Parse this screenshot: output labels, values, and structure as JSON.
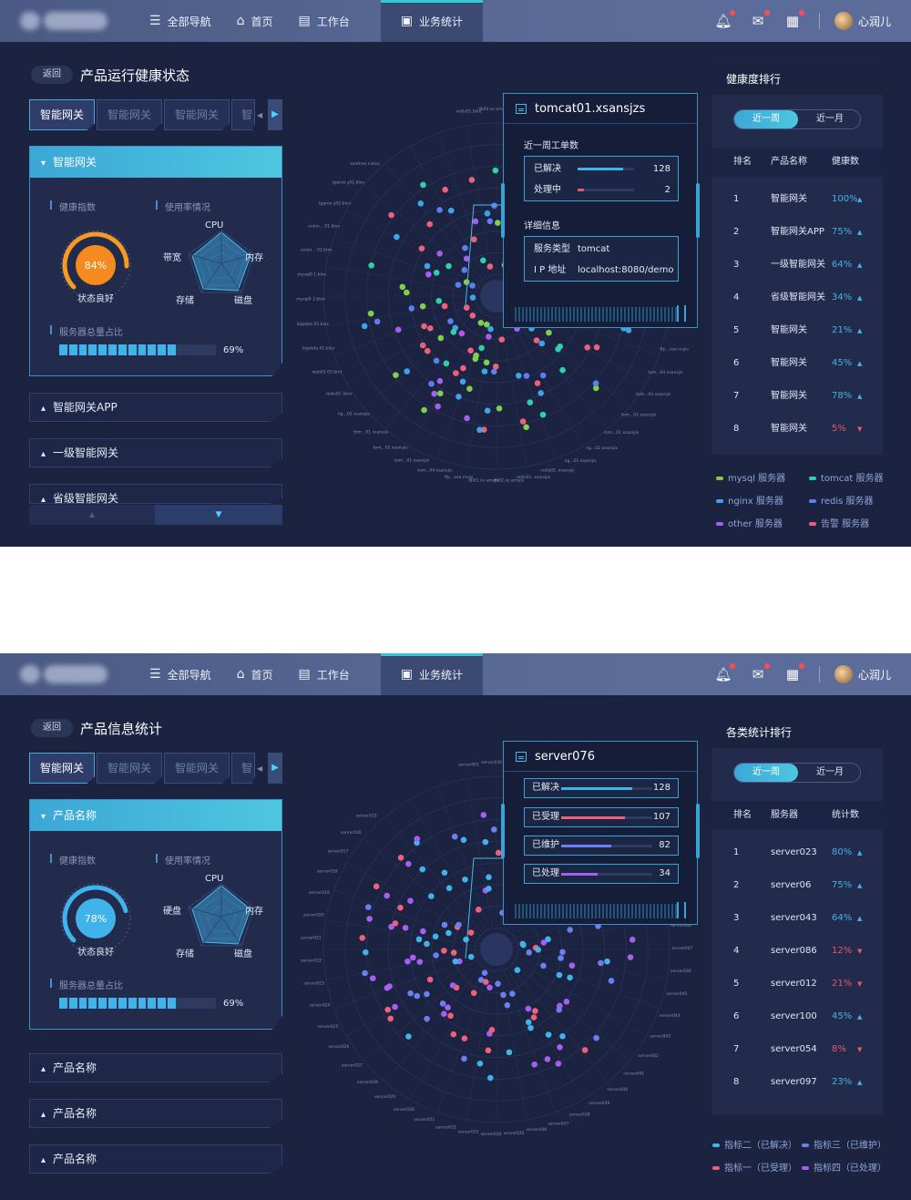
{
  "topbar": {
    "nav": [
      {
        "label": "全部导航",
        "icon": "menu-icon"
      },
      {
        "label": "首页",
        "icon": "home-icon"
      },
      {
        "label": "工作台",
        "icon": "desk-icon"
      },
      {
        "label": "业务统计",
        "icon": "chart-icon",
        "active": true
      }
    ],
    "user": "心润儿"
  },
  "screen1": {
    "back": "返回",
    "title": "产品运行健康状态",
    "tabs": [
      "智能网关",
      "智能网关",
      "智能网关",
      "智"
    ],
    "panel": {
      "title": "智能网关",
      "health_label": "健康指数",
      "usage_label": "使用率情况",
      "gauge_value": "84%",
      "gauge_fraction": 0.84,
      "gauge_caption": "状态良好",
      "radar_labels": [
        "CPU",
        "内存",
        "磁盘",
        "存储",
        "带宽"
      ],
      "server_label": "服务器总量占比",
      "server_pct": "69%",
      "server_fraction": 0.69
    },
    "folds": [
      "智能网关APP",
      "一级智能网关",
      "省级智能网关"
    ],
    "popup": {
      "title": "tomcat01.xsansjzs",
      "week_label": "近一周工单数",
      "rows": [
        {
          "label": "已解决",
          "value": "128",
          "fraction": 0.8,
          "color": "#3fb3ea"
        },
        {
          "label": "处理中",
          "value": "2",
          "fraction": 0.12,
          "color": "#e0566a"
        }
      ],
      "detail_label": "详细信息",
      "details": [
        {
          "label": "服务类型",
          "value": "tomcat"
        },
        {
          "label": "I P 地址",
          "value": "localhost:8080/demo"
        }
      ]
    },
    "polar_labels": [
      "redis01.blxx",
      "db02.xs amsjis",
      "db01.xs amsjis",
      "ftp...xsa rnsjis",
      "tom...04 xsansjis",
      "tom...01 xsansjis",
      "tom...02 xsansjis",
      "tom...01 xsansjis",
      "tom...02 xsansjis",
      "ng...01 xsansjis",
      "ng...02 xsansjis",
      "redis02 .xsansjis",
      "redis01 .xsansjis",
      "db02.xs amsjis",
      "db01.xs amsjis",
      "ftp...xsa rnsjis",
      "tom...04 xsansjis",
      "tom...03 xsansjis",
      "tom...02 xsansjis",
      "tom...01 xsansjis",
      "ng...02 xsansjis",
      "ng...01 xsansjis",
      "redis02 .xsansjis",
      "redis01 .xsansjis",
      "db02.xs amsjis",
      "db01.xs amsjis",
      "ftp...xsa rnsjis",
      "tom...04 xsansjis",
      "tom...01 xsansjis",
      "tom...02 xsansjis",
      "tom...01 xsansjis",
      "ng...02 xsansjis",
      "redis01 .blxx",
      "web01 03.blxx",
      "bigdata 01.blxx",
      "bigdata 02.blxx",
      "mysql0 2.blxx",
      "mysql0 1.blxx",
      "union... 02.blxx",
      "union... 01.blxx",
      "tpprox y02.blxx",
      "tpprox y01.blxx",
      "sentinel s.blxx"
    ],
    "rank": {
      "title": "健康度排行",
      "toggle": [
        "近一周",
        "近一月"
      ],
      "cols": [
        "排名",
        "产品名称",
        "健康数"
      ],
      "rows": [
        {
          "rank": "1",
          "name": "智能网关",
          "pct": "100%",
          "up": true
        },
        {
          "rank": "2",
          "name": "智能网关APP",
          "pct": "75%",
          "up": true
        },
        {
          "rank": "3",
          "name": "一级智能网关",
          "pct": "64%",
          "up": true
        },
        {
          "rank": "4",
          "name": "省级智能网关",
          "pct": "34%",
          "up": true
        },
        {
          "rank": "5",
          "name": "智能网关",
          "pct": "21%",
          "up": true
        },
        {
          "rank": "6",
          "name": "智能网关",
          "pct": "45%",
          "up": true
        },
        {
          "rank": "7",
          "name": "智能网关",
          "pct": "78%",
          "up": true
        },
        {
          "rank": "8",
          "name": "智能网关",
          "pct": "5%",
          "up": false
        }
      ]
    },
    "legend": [
      {
        "label": "mysql 服务器",
        "color": "#7fcf4b"
      },
      {
        "label": "tomcat 服务器",
        "color": "#2fd0a8"
      },
      {
        "label": "nginx 服务器",
        "color": "#3fa3ea"
      },
      {
        "label": "redis 服务器",
        "color": "#5a7ff0"
      },
      {
        "label": "other 服务器",
        "color": "#a65ff0"
      },
      {
        "label": "告警 服务器",
        "color": "#f0607a"
      }
    ]
  },
  "screen2": {
    "back": "返回",
    "title": "产品信息统计",
    "tabs": [
      "智能网关",
      "智能网关",
      "智能网关",
      "智"
    ],
    "panel": {
      "title": "产品名称",
      "health_label": "健康指数",
      "usage_label": "使用率情况",
      "gauge_value": "78%",
      "gauge_fraction": 0.78,
      "gauge_caption": "状态良好",
      "radar_labels": [
        "CPU",
        "内存",
        "磁盘",
        "存储",
        "硬盘"
      ],
      "server_label": "服务器总量占比",
      "server_pct": "69%",
      "server_fraction": 0.69
    },
    "folds": [
      "产品名称",
      "产品名称",
      "产品名称"
    ],
    "popup": {
      "title": "server076",
      "rows": [
        {
          "label": "已解决",
          "value": "128",
          "fraction": 0.78,
          "color": "#3fb3ea"
        },
        {
          "label": "已受理",
          "value": "107",
          "fraction": 0.7,
          "color": "#f0607a"
        },
        {
          "label": "已维护",
          "value": "82",
          "fraction": 0.55,
          "color": "#6a7ff0"
        },
        {
          "label": "已处理",
          "value": "34",
          "fraction": 0.4,
          "color": "#a65ff0"
        }
      ]
    },
    "polar_labels": [
      "server001",
      "server100",
      "server099",
      "server058",
      "server057",
      "server056",
      "server055",
      "server054",
      "server053",
      "server052",
      "server051",
      "server050",
      "server049",
      "server048",
      "server047",
      "server046",
      "server045",
      "server044",
      "server043",
      "server042",
      "server041",
      "server040",
      "server039",
      "server038",
      "server037",
      "server036",
      "server035",
      "server034",
      "server033",
      "server032",
      "server031",
      "server030",
      "server029",
      "server028",
      "server027",
      "server026",
      "server025",
      "server024",
      "server023",
      "server022",
      "server021",
      "server020",
      "server019",
      "server018",
      "server017",
      "server016",
      "server015"
    ],
    "rank": {
      "title": "各类统计排行",
      "toggle": [
        "近一周",
        "近一月"
      ],
      "cols": [
        "排名",
        "服务器",
        "统计数"
      ],
      "rows": [
        {
          "rank": "1",
          "name": "server023",
          "pct": "80%",
          "up": true
        },
        {
          "rank": "2",
          "name": "server06",
          "pct": "75%",
          "up": true
        },
        {
          "rank": "3",
          "name": "server043",
          "pct": "64%",
          "up": true
        },
        {
          "rank": "4",
          "name": "server086",
          "pct": "12%",
          "up": false
        },
        {
          "rank": "5",
          "name": "server012",
          "pct": "21%",
          "up": false
        },
        {
          "rank": "6",
          "name": "server100",
          "pct": "45%",
          "up": true
        },
        {
          "rank": "7",
          "name": "server054",
          "pct": "8%",
          "up": false
        },
        {
          "rank": "8",
          "name": "server097",
          "pct": "23%",
          "up": true
        }
      ]
    },
    "legend": [
      {
        "label": "指标二（已解决）",
        "color": "#3fb3ea"
      },
      {
        "label": "指标三（已维护）",
        "color": "#6a7ff0"
      },
      {
        "label": "指标一（已受理）",
        "color": "#f0607a"
      },
      {
        "label": "指标四（已处理）",
        "color": "#a65ff0"
      }
    ]
  }
}
